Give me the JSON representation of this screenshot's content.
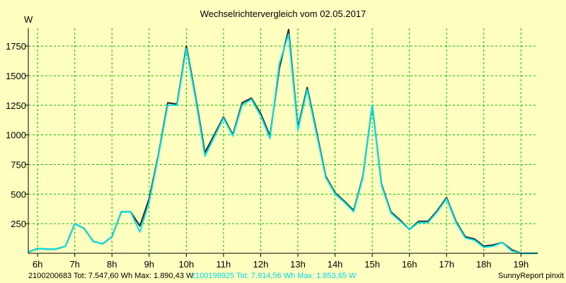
{
  "chart_data": {
    "type": "line",
    "title": "Wechselrichtervergleich vom 02.05.2017",
    "ylabel": "W",
    "xlabel": "",
    "xlim": [
      5.75,
      19.45
    ],
    "ylim": [
      0,
      1900
    ],
    "yticks": [
      250,
      500,
      750,
      1000,
      1250,
      1500,
      1750
    ],
    "xticks": [
      {
        "label": "6h",
        "value": 6
      },
      {
        "label": "7h",
        "value": 7
      },
      {
        "label": "8h",
        "value": 8
      },
      {
        "label": "9h",
        "value": 9
      },
      {
        "label": "10h",
        "value": 10
      },
      {
        "label": "11h",
        "value": 11
      },
      {
        "label": "12h",
        "value": 12
      },
      {
        "label": "13h",
        "value": 13
      },
      {
        "label": "14h",
        "value": 14
      },
      {
        "label": "15h",
        "value": 15
      },
      {
        "label": "16h",
        "value": 16
      },
      {
        "label": "17h",
        "value": 17
      },
      {
        "label": "18h",
        "value": 18
      },
      {
        "label": "19h",
        "value": 19
      }
    ],
    "grid": true,
    "series": [
      {
        "name": "2100200683",
        "summary": "2100200683 Tot: 7.547,60 Wh Max: 1.890,43 W",
        "color": "#303030",
        "x": [
          5.75,
          6.0,
          6.25,
          6.5,
          6.75,
          7.0,
          7.25,
          7.5,
          7.75,
          8.0,
          8.25,
          8.5,
          8.75,
          9.0,
          9.25,
          9.5,
          9.75,
          10.0,
          10.25,
          10.5,
          10.75,
          11.0,
          11.25,
          11.5,
          11.75,
          12.0,
          12.25,
          12.5,
          12.75,
          13.0,
          13.25,
          13.5,
          13.75,
          14.0,
          14.25,
          14.5,
          14.75,
          15.0,
          15.25,
          15.5,
          15.75,
          16.0,
          16.25,
          16.5,
          16.75,
          17.0,
          17.25,
          17.5,
          17.75,
          18.0,
          18.25,
          18.5,
          18.75,
          19.0,
          19.25,
          19.45
        ],
        "values": [
          10,
          40,
          35,
          35,
          60,
          250,
          210,
          100,
          80,
          140,
          350,
          350,
          230,
          460,
          830,
          1270,
          1260,
          1750,
          1320,
          850,
          1000,
          1150,
          1000,
          1270,
          1310,
          1180,
          990,
          1560,
          1890,
          1060,
          1400,
          1030,
          650,
          510,
          440,
          360,
          650,
          1250,
          580,
          350,
          280,
          200,
          270,
          270,
          360,
          470,
          270,
          140,
          120,
          60,
          70,
          90,
          30,
          0,
          0,
          0
        ]
      },
      {
        "name": "2100198925",
        "summary": "2100198925 Tot: 7.914,56 Wh Max: 1.853,65 W",
        "color": "#00e5ee",
        "x": [
          5.75,
          6.0,
          6.25,
          6.5,
          6.75,
          7.0,
          7.25,
          7.5,
          7.75,
          8.0,
          8.25,
          8.5,
          8.75,
          9.0,
          9.25,
          9.5,
          9.75,
          10.0,
          10.25,
          10.5,
          10.75,
          11.0,
          11.25,
          11.5,
          11.75,
          12.0,
          12.25,
          12.5,
          12.75,
          13.0,
          13.25,
          13.5,
          13.75,
          14.0,
          14.25,
          14.5,
          14.75,
          15.0,
          15.25,
          15.5,
          15.75,
          16.0,
          16.25,
          16.5,
          16.75,
          17.0,
          17.25,
          17.5,
          17.75,
          18.0,
          18.25,
          18.5,
          18.75,
          19.0,
          19.25,
          19.45
        ],
        "values": [
          10,
          40,
          35,
          35,
          60,
          250,
          210,
          100,
          80,
          140,
          350,
          350,
          180,
          430,
          820,
          1250,
          1250,
          1730,
          1300,
          820,
          980,
          1140,
          990,
          1250,
          1300,
          1160,
          970,
          1600,
          1850,
          1040,
          1380,
          1010,
          640,
          500,
          430,
          350,
          640,
          1250,
          570,
          340,
          270,
          200,
          260,
          260,
          350,
          460,
          260,
          130,
          110,
          50,
          60,
          90,
          20,
          0,
          0,
          0
        ]
      }
    ],
    "footer_right": "SunnyReport pinxit"
  }
}
